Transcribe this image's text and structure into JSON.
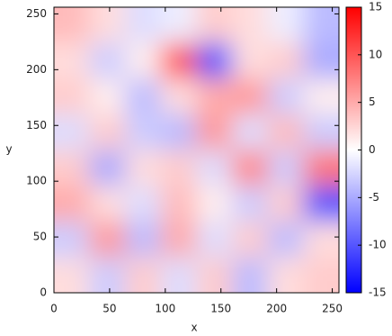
{
  "chart_data": {
    "type": "heatmap",
    "xlabel": "x",
    "ylabel": "y",
    "xlim": [
      0,
      256
    ],
    "ylim": [
      0,
      256
    ],
    "xticks": [
      0,
      50,
      100,
      150,
      200,
      250
    ],
    "yticks": [
      0,
      50,
      100,
      150,
      200,
      250
    ],
    "x": [
      16,
      48,
      80,
      112,
      144,
      176,
      208,
      240
    ],
    "y": [
      16,
      48,
      80,
      112,
      144,
      176,
      208,
      240
    ],
    "z": [
      [
        2,
        -3,
        3,
        -2,
        3,
        -4,
        2,
        3
      ],
      [
        -3,
        6,
        -4,
        5,
        -2,
        3,
        -4,
        2
      ],
      [
        5,
        2,
        -2,
        4,
        1,
        -3,
        3,
        -10
      ],
      [
        3,
        -5,
        2,
        3,
        -2,
        7,
        -3,
        8
      ],
      [
        -2,
        3,
        -3,
        -4,
        6,
        -2,
        4,
        -3
      ],
      [
        3,
        1,
        -4,
        2,
        5,
        6,
        -3,
        1
      ],
      [
        2,
        -3,
        1,
        10,
        -10,
        2,
        3,
        -5
      ],
      [
        4,
        2,
        -2,
        -1,
        3,
        2,
        -1,
        -4
      ]
    ],
    "clim": [
      -15,
      15
    ],
    "cticks": [
      -15,
      -10,
      -5,
      0,
      5,
      10,
      15
    ],
    "colormap": [
      "#0000ff",
      "#ffffff",
      "#ff0000"
    ]
  }
}
